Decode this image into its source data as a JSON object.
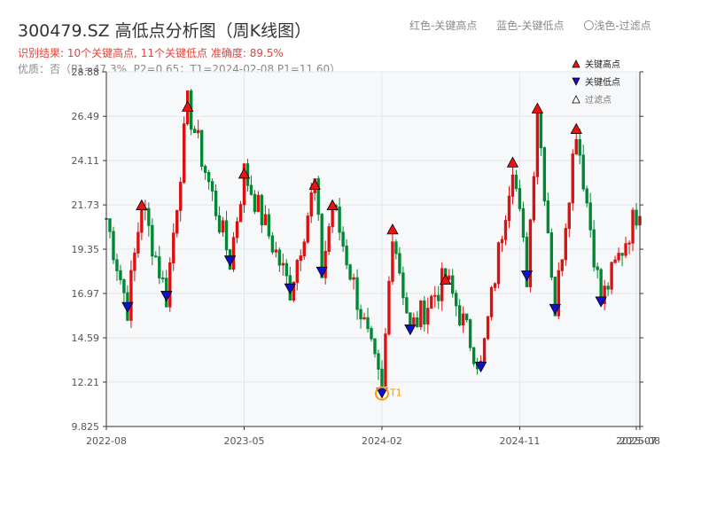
{
  "header": {
    "title": "300479.SZ 高低点分析图（周K线图）",
    "legend_red": "红色-关键高点",
    "legend_blue": "蓝色-关键低点",
    "legend_light": "〇浅色-过滤点",
    "result_line": "识别结果: 10个关键高点, 11个关键低点  准确度: 89.5%",
    "quality_line": "优质：否（P1=47.3%, P2=0.65；T1=2024-02-08 P1=11.60）"
  },
  "chart_data": {
    "type": "candlestick",
    "yticks": [
      28.88,
      26.49,
      24.11,
      21.73,
      19.35,
      16.97,
      14.59,
      12.21,
      9.825
    ],
    "ylim": [
      9.825,
      28.88
    ],
    "xticks": [
      "2022-08",
      "2023-05",
      "2024-02",
      "2024-11",
      "2025-07",
      "2025-08"
    ],
    "x_range_weeks": [
      0,
      151
    ],
    "xtick_weeks": [
      0,
      39,
      78,
      117,
      150,
      151
    ],
    "legend": [
      {
        "marker": "triangle-up",
        "color": "#ee1111",
        "label": "关键高点"
      },
      {
        "marker": "triangle-down",
        "color": "#1010cc",
        "label": "关键低点"
      },
      {
        "marker": "triangle-up-outline",
        "color": "#ffffff",
        "label": "过滤点"
      }
    ],
    "highs": [
      {
        "week": 10,
        "price": 21.8
      },
      {
        "week": 23,
        "price": 27.1
      },
      {
        "week": 39,
        "price": 23.5
      },
      {
        "week": 59,
        "price": 22.9
      },
      {
        "week": 64,
        "price": 21.8
      },
      {
        "week": 81,
        "price": 20.5
      },
      {
        "week": 96,
        "price": 17.8
      },
      {
        "week": 115,
        "price": 24.1
      },
      {
        "week": 122,
        "price": 27.0
      },
      {
        "week": 133,
        "price": 25.9
      }
    ],
    "lows": [
      {
        "week": 6,
        "price": 16.2
      },
      {
        "week": 17,
        "price": 16.8
      },
      {
        "week": 35,
        "price": 18.7
      },
      {
        "week": 52,
        "price": 17.2
      },
      {
        "week": 61,
        "price": 18.1
      },
      {
        "week": 78,
        "price": 11.6
      },
      {
        "week": 86,
        "price": 15.0
      },
      {
        "week": 106,
        "price": 13.0
      },
      {
        "week": 119,
        "price": 17.9
      },
      {
        "week": 127,
        "price": 16.1
      },
      {
        "week": 140,
        "price": 16.5
      }
    ],
    "t1": {
      "week": 78,
      "price": 11.6,
      "label": "T1"
    },
    "last_close": 21.8,
    "start_price": 21.0,
    "colors": {
      "up": "#dd1111",
      "down": "#008833",
      "t1": "#ff9900",
      "bg": "#f7f8fa"
    }
  }
}
